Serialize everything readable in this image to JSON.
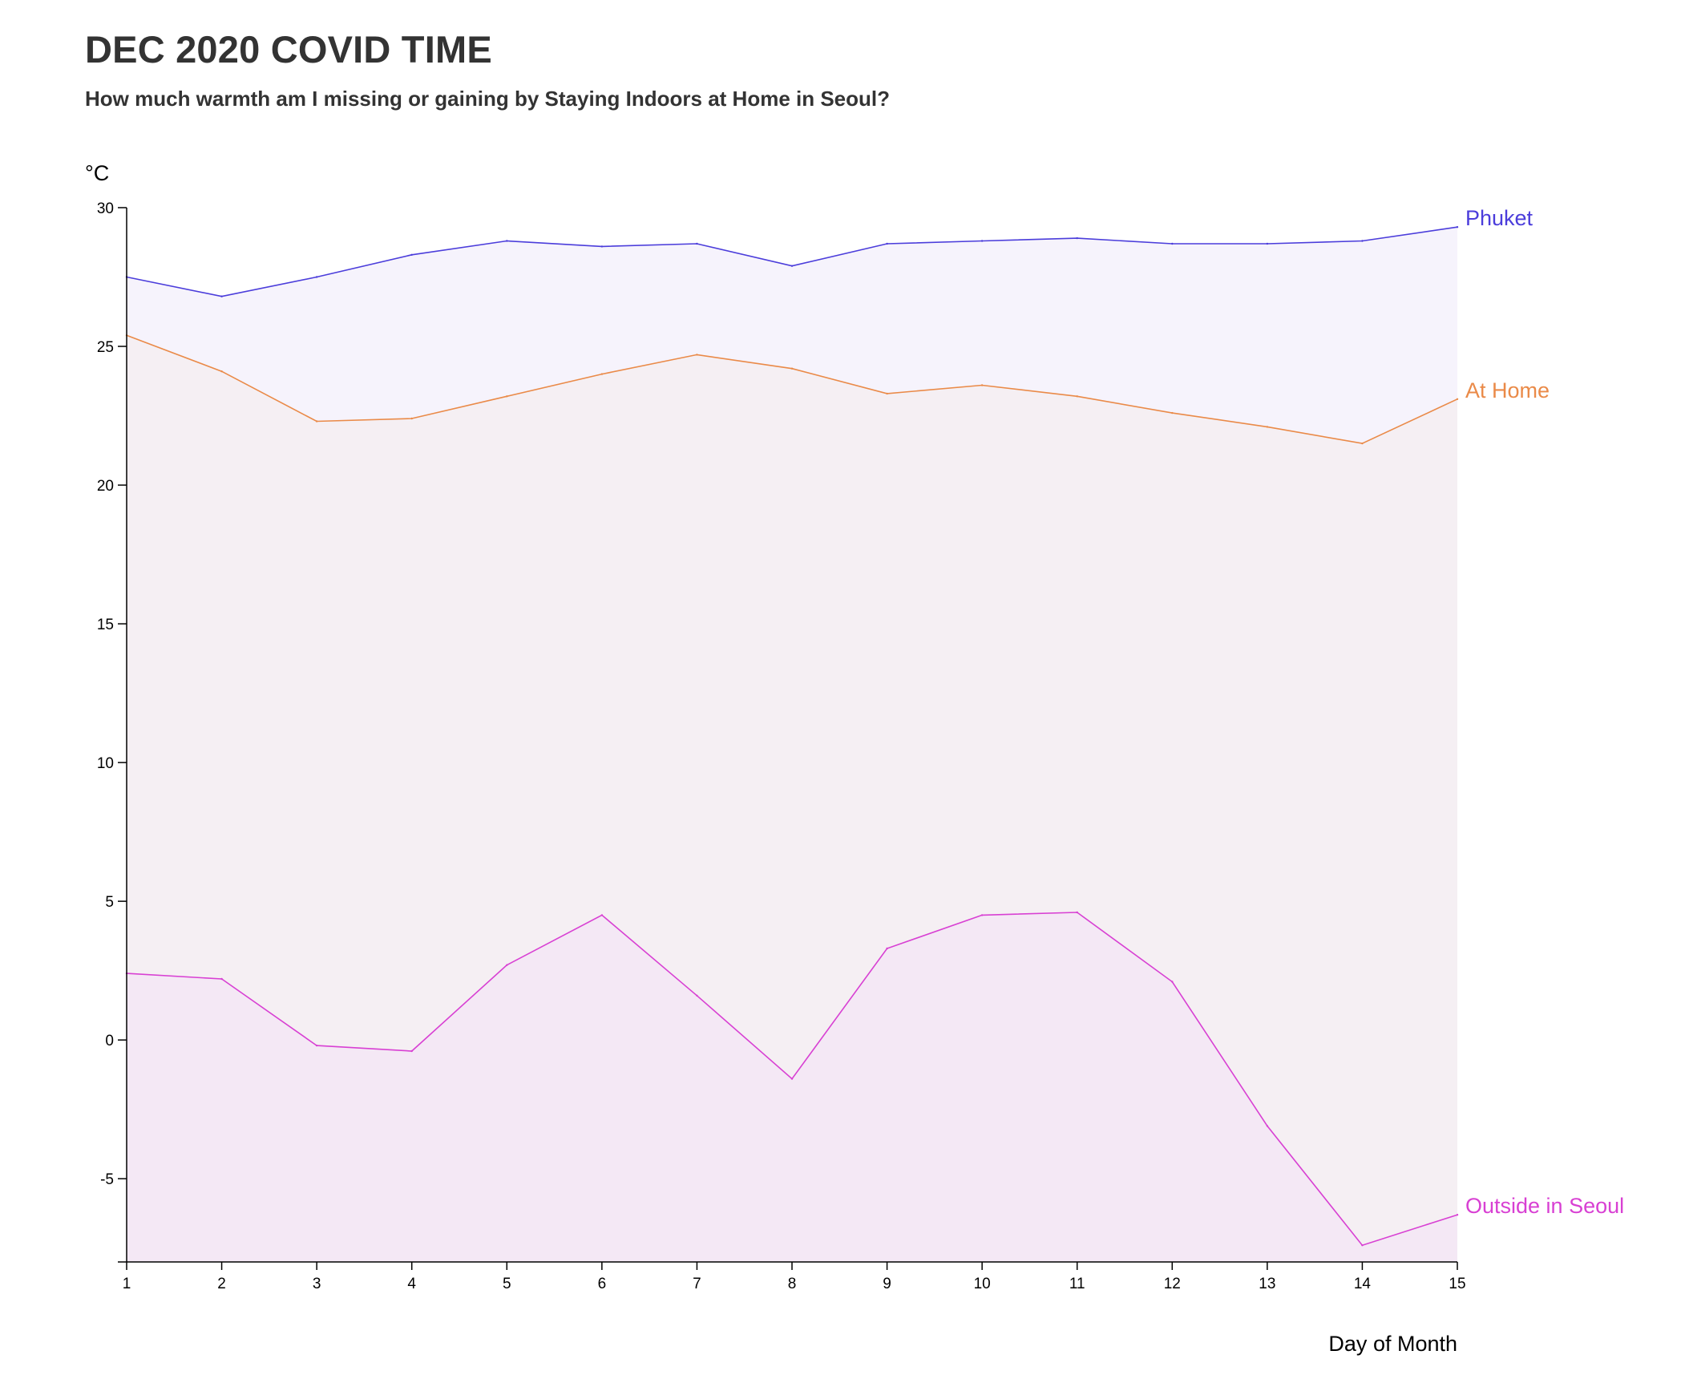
{
  "chart_data": {
    "type": "area",
    "title": "DEC 2020 COVID TIME",
    "subtitle": "How much warmth am I missing or gaining by Staying Indoors at Home in Seoul?",
    "xlabel": "Day of Month",
    "ylabel": "°C",
    "x": [
      1,
      2,
      3,
      4,
      5,
      6,
      7,
      8,
      9,
      10,
      11,
      12,
      13,
      14,
      15
    ],
    "xlim": [
      1,
      15
    ],
    "ylim": [
      -8,
      30
    ],
    "yticks": [
      30,
      25,
      20,
      15,
      10,
      5,
      0,
      -5
    ],
    "ytick_labels": [
      "30",
      "25",
      "20",
      "15",
      "10",
      "5",
      "0",
      "-5"
    ],
    "xtick_labels": [
      "1",
      "2",
      "3",
      "4",
      "5",
      "6",
      "7",
      "8",
      "9",
      "10",
      "11",
      "12",
      "13",
      "14",
      "15"
    ],
    "grid": false,
    "legend": "inline labels at right end of each series",
    "series": [
      {
        "name": "Phuket",
        "color": "#4b3ddb",
        "fill": "#f6f3fc",
        "values": [
          27.5,
          26.8,
          27.5,
          28.3,
          28.8,
          28.6,
          28.7,
          27.9,
          28.7,
          28.8,
          28.9,
          28.7,
          28.7,
          28.8,
          29.3
        ]
      },
      {
        "name": "At Home",
        "color": "#ea8a48",
        "fill": "#f5eff3",
        "values": [
          25.4,
          24.1,
          22.3,
          22.4,
          23.2,
          24.0,
          24.7,
          24.2,
          23.3,
          23.6,
          23.2,
          22.6,
          22.1,
          21.5,
          23.1
        ]
      },
      {
        "name": "Outside in Seoul",
        "color": "#d840d3",
        "fill": "#f4e8f5",
        "values": [
          2.4,
          2.2,
          -0.2,
          -0.4,
          2.7,
          4.5,
          1.6,
          -1.4,
          3.3,
          4.5,
          4.6,
          2.1,
          -3.1,
          -7.4,
          -6.3
        ]
      }
    ]
  }
}
